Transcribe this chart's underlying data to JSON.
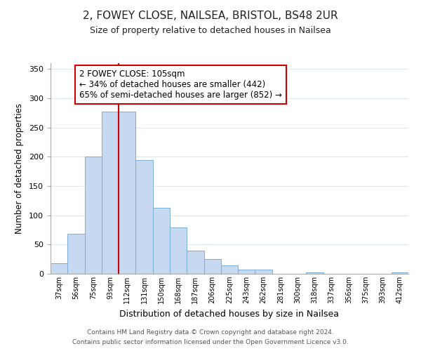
{
  "title1": "2, FOWEY CLOSE, NAILSEA, BRISTOL, BS48 2UR",
  "title2": "Size of property relative to detached houses in Nailsea",
  "xlabel": "Distribution of detached houses by size in Nailsea",
  "ylabel": "Number of detached properties",
  "bar_labels": [
    "37sqm",
    "56sqm",
    "75sqm",
    "93sqm",
    "112sqm",
    "131sqm",
    "150sqm",
    "168sqm",
    "187sqm",
    "206sqm",
    "225sqm",
    "243sqm",
    "262sqm",
    "281sqm",
    "300sqm",
    "318sqm",
    "337sqm",
    "356sqm",
    "375sqm",
    "393sqm",
    "412sqm"
  ],
  "bar_values": [
    18,
    68,
    200,
    277,
    277,
    195,
    113,
    79,
    40,
    25,
    14,
    7,
    7,
    0,
    0,
    2,
    0,
    0,
    0,
    0,
    2
  ],
  "bar_color": "#c6d9f0",
  "bar_edge_color": "#7bafd4",
  "vline_index": 4,
  "vline_color": "#cc0000",
  "ylim": [
    0,
    360
  ],
  "yticks": [
    0,
    50,
    100,
    150,
    200,
    250,
    300,
    350
  ],
  "annotation_title": "2 FOWEY CLOSE: 105sqm",
  "annotation_line1": "← 34% of detached houses are smaller (442)",
  "annotation_line2": "65% of semi-detached houses are larger (852) →",
  "annotation_box_color": "#ffffff",
  "annotation_box_edge": "#cc0000",
  "footer1": "Contains HM Land Registry data © Crown copyright and database right 2024.",
  "footer2": "Contains public sector information licensed under the Open Government Licence v3.0.",
  "bg_color": "#ffffff",
  "grid_color": "#dde4ef",
  "spine_color": "#aaaaaa"
}
